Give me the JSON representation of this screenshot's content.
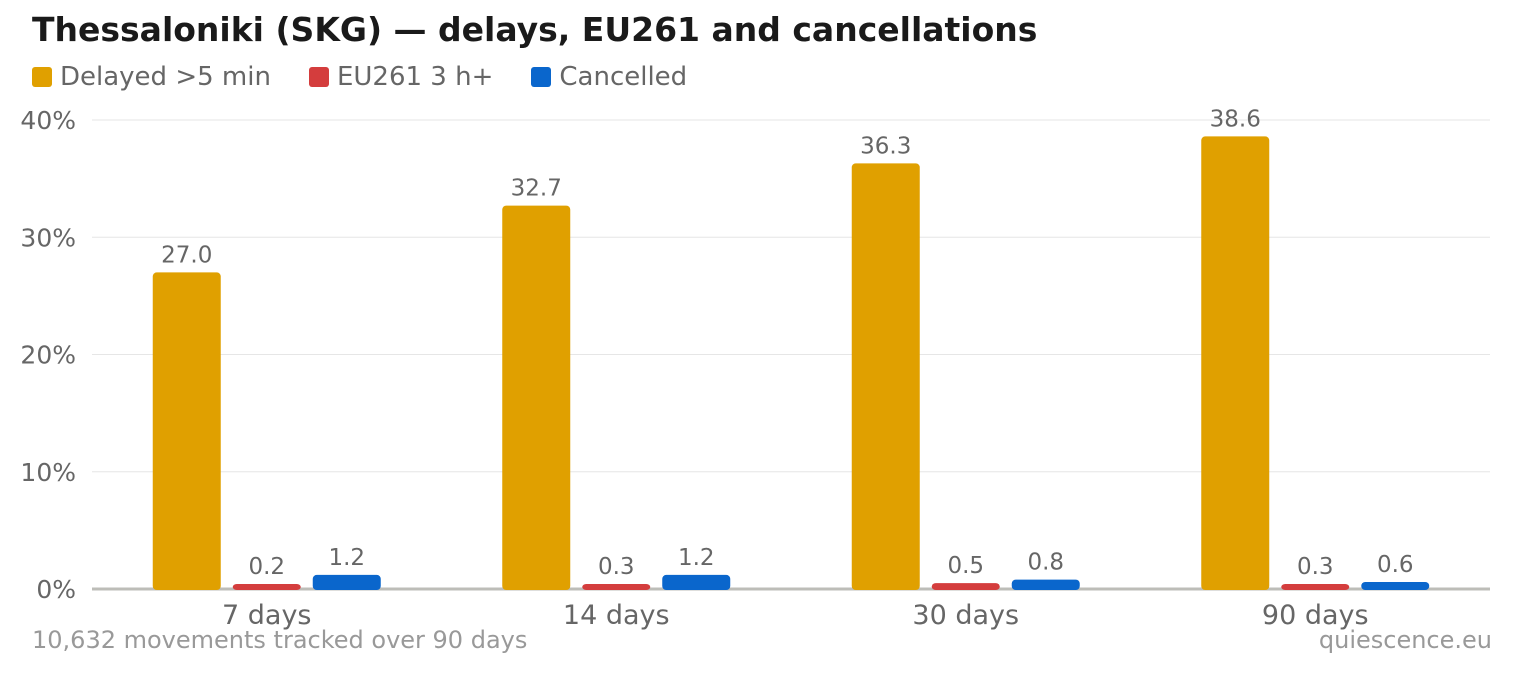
{
  "title": "Thessaloniki (SKG) — delays, EU261 and cancellations",
  "footer": {
    "note": "10,632 movements tracked over 90 days",
    "source": "quiescence.eu"
  },
  "chart_data": {
    "type": "bar",
    "categories": [
      "7 days",
      "14 days",
      "30 days",
      "90 days"
    ],
    "series": [
      {
        "name": "Delayed >5 min",
        "color": "#e0a000",
        "values": [
          27.0,
          32.7,
          36.3,
          38.6
        ],
        "labels": [
          "27.0",
          "32.7",
          "36.3",
          "38.6"
        ]
      },
      {
        "name": "EU261 3 h+",
        "color": "#d43d3d",
        "values": [
          0.2,
          0.3,
          0.5,
          0.3
        ],
        "labels": [
          "0.2",
          "0.3",
          "0.5",
          "0.3"
        ]
      },
      {
        "name": "Cancelled",
        "color": "#0a66cc",
        "values": [
          1.2,
          1.2,
          0.8,
          0.6
        ],
        "labels": [
          "1.2",
          "1.2",
          "0.8",
          "0.6"
        ]
      }
    ],
    "ylim": [
      0,
      40
    ],
    "yticks": [
      0,
      10,
      20,
      30,
      40
    ],
    "ytick_labels": [
      "0%",
      "10%",
      "20%",
      "30%",
      "40%"
    ],
    "grid": true,
    "legend_position": "top-left"
  }
}
